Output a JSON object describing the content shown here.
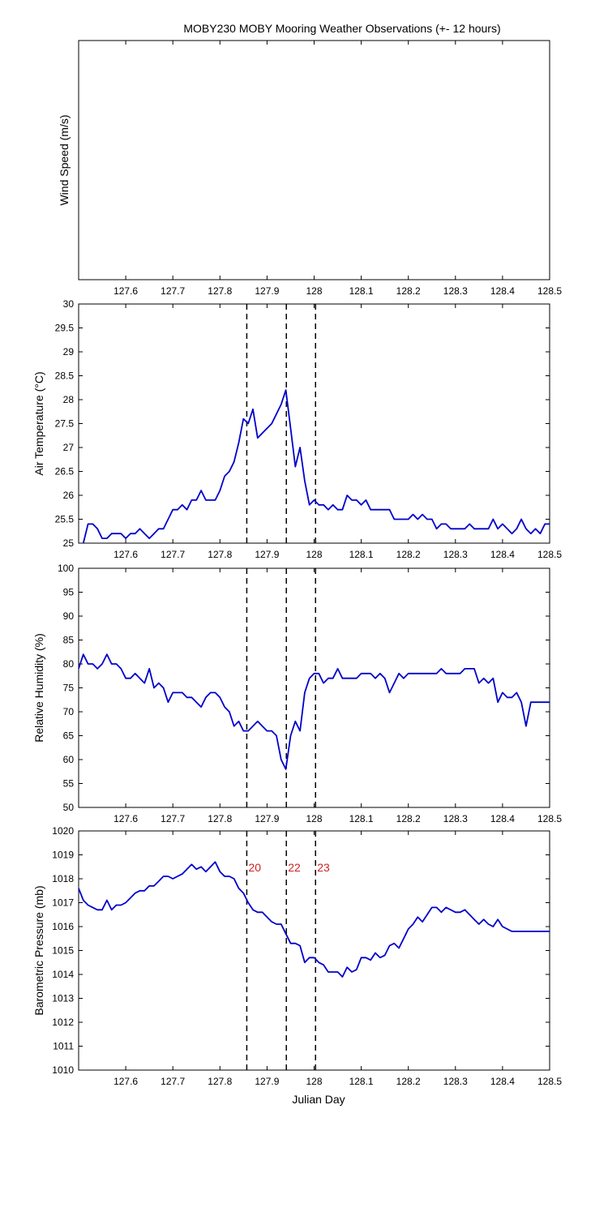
{
  "title": "MOBY230 MOBY Mooring Weather Observations (+- 12 hours)",
  "x_axis_label": "Julian Day",
  "colors": {
    "series": "#0000cc",
    "event_label": "#cc2222",
    "axes": "#000000",
    "event_line": "#000000"
  },
  "chart_data": [
    {
      "type": "line",
      "ylabel": "Wind Speed (m/s)",
      "xlim": [
        127.5,
        128.5
      ],
      "x_ticks": [
        "127.6",
        "127.7",
        "127.8",
        "127.9",
        "128",
        "128.1",
        "128.2",
        "128.3",
        "128.4",
        "128.5"
      ],
      "y_ticks": [],
      "series": [],
      "event_lines": []
    },
    {
      "type": "line",
      "ylabel": "Air Temperature (°C)",
      "xlim": [
        127.5,
        128.5
      ],
      "ylim": [
        25,
        30
      ],
      "x_ticks": [
        "127.6",
        "127.7",
        "127.8",
        "127.9",
        "128",
        "128.1",
        "128.2",
        "128.3",
        "128.4",
        "128.5"
      ],
      "y_ticks": [
        "25",
        "25.5",
        "26",
        "26.5",
        "27",
        "27.5",
        "28",
        "28.5",
        "29",
        "29.5",
        "30"
      ],
      "event_lines": [
        127.857,
        127.941,
        128.003
      ],
      "series": [
        {
          "x": [
            127.51,
            127.52,
            127.53,
            127.54,
            127.55,
            127.56,
            127.57,
            127.58,
            127.59,
            127.6,
            127.61,
            127.62,
            127.63,
            127.64,
            127.65,
            127.66,
            127.67,
            127.68,
            127.69,
            127.7,
            127.71,
            127.72,
            127.73,
            127.74,
            127.75,
            127.76,
            127.77,
            127.78,
            127.79,
            127.8,
            127.81,
            127.82,
            127.83,
            127.84,
            127.85,
            127.86,
            127.87,
            127.88,
            127.89,
            127.9,
            127.91,
            127.92,
            127.93,
            127.94,
            127.95,
            127.96,
            127.97,
            127.98,
            127.99,
            128.0,
            128.01,
            128.02,
            128.03,
            128.04,
            128.05,
            128.06,
            128.07,
            128.08,
            128.09,
            128.1,
            128.11,
            128.12,
            128.13,
            128.14,
            128.15,
            128.16,
            128.17,
            128.18,
            128.19,
            128.2,
            128.21,
            128.22,
            128.23,
            128.24,
            128.25,
            128.26,
            128.27,
            128.28,
            128.29,
            128.3,
            128.31,
            128.32,
            128.33,
            128.34,
            128.35,
            128.36,
            128.37,
            128.38,
            128.39,
            128.4,
            128.41,
            128.42,
            128.43,
            128.44,
            128.45,
            128.46,
            128.47,
            128.48,
            128.49,
            128.5
          ],
          "y": [
            25.0,
            25.4,
            25.4,
            25.3,
            25.1,
            25.1,
            25.2,
            25.2,
            25.2,
            25.1,
            25.2,
            25.2,
            25.3,
            25.2,
            25.1,
            25.2,
            25.3,
            25.3,
            25.5,
            25.7,
            25.7,
            25.8,
            25.7,
            25.9,
            25.9,
            26.1,
            25.9,
            25.9,
            25.9,
            26.1,
            26.4,
            26.5,
            26.7,
            27.1,
            27.6,
            27.5,
            27.8,
            27.2,
            27.3,
            27.4,
            27.5,
            27.7,
            27.9,
            28.2,
            27.4,
            26.6,
            27.0,
            26.3,
            25.8,
            25.9,
            25.8,
            25.8,
            25.7,
            25.8,
            25.7,
            25.7,
            26.0,
            25.9,
            25.9,
            25.8,
            25.9,
            25.7,
            25.7,
            25.7,
            25.7,
            25.7,
            25.5,
            25.5,
            25.5,
            25.5,
            25.6,
            25.5,
            25.6,
            25.5,
            25.5,
            25.3,
            25.4,
            25.4,
            25.3,
            25.3,
            25.3,
            25.3,
            25.4,
            25.3,
            25.3,
            25.3,
            25.3,
            25.5,
            25.3,
            25.4,
            25.3,
            25.2,
            25.3,
            25.5,
            25.3,
            25.2,
            25.3,
            25.2,
            25.4,
            25.4
          ]
        }
      ]
    },
    {
      "type": "line",
      "ylabel": "Relative Humidity (%)",
      "xlim": [
        127.5,
        128.5
      ],
      "ylim": [
        50,
        100
      ],
      "x_ticks": [
        "127.6",
        "127.7",
        "127.8",
        "127.9",
        "128",
        "128.1",
        "128.2",
        "128.3",
        "128.4",
        "128.5"
      ],
      "y_ticks": [
        "50",
        "55",
        "60",
        "65",
        "70",
        "75",
        "80",
        "85",
        "90",
        "95",
        "100"
      ],
      "event_lines": [
        127.857,
        127.941,
        128.003
      ],
      "series": [
        {
          "x": [
            127.5,
            127.51,
            127.52,
            127.53,
            127.54,
            127.55,
            127.56,
            127.57,
            127.58,
            127.59,
            127.6,
            127.61,
            127.62,
            127.63,
            127.64,
            127.65,
            127.66,
            127.67,
            127.68,
            127.69,
            127.7,
            127.71,
            127.72,
            127.73,
            127.74,
            127.75,
            127.76,
            127.77,
            127.78,
            127.79,
            127.8,
            127.81,
            127.82,
            127.83,
            127.84,
            127.85,
            127.86,
            127.87,
            127.88,
            127.89,
            127.9,
            127.91,
            127.92,
            127.93,
            127.94,
            127.95,
            127.96,
            127.97,
            127.98,
            127.99,
            128.0,
            128.01,
            128.02,
            128.03,
            128.04,
            128.05,
            128.06,
            128.07,
            128.08,
            128.09,
            128.1,
            128.11,
            128.12,
            128.13,
            128.14,
            128.15,
            128.16,
            128.17,
            128.18,
            128.19,
            128.2,
            128.21,
            128.22,
            128.23,
            128.24,
            128.25,
            128.26,
            128.27,
            128.28,
            128.29,
            128.3,
            128.31,
            128.32,
            128.33,
            128.34,
            128.35,
            128.36,
            128.37,
            128.38,
            128.39,
            128.4,
            128.41,
            128.42,
            128.43,
            128.44,
            128.45,
            128.46,
            128.47,
            128.48,
            128.49,
            128.5
          ],
          "y": [
            79,
            82,
            80,
            80,
            79,
            80,
            82,
            80,
            80,
            79,
            77,
            77,
            78,
            77,
            76,
            79,
            75,
            76,
            75,
            72,
            74,
            74,
            74,
            73,
            73,
            72,
            71,
            73,
            74,
            74,
            73,
            71,
            70,
            67,
            68,
            66,
            66,
            67,
            68,
            67,
            66,
            66,
            65,
            60,
            58,
            65,
            68,
            66,
            74,
            77,
            78,
            78,
            76,
            77,
            77,
            79,
            77,
            77,
            77,
            77,
            78,
            78,
            78,
            77,
            78,
            77,
            74,
            76,
            78,
            77,
            78,
            78,
            78,
            78,
            78,
            78,
            78,
            79,
            78,
            78,
            78,
            78,
            79,
            79,
            79,
            76,
            77,
            76,
            77,
            72,
            74,
            73,
            73,
            74,
            72,
            67,
            72,
            72,
            72,
            72,
            72
          ]
        }
      ]
    },
    {
      "type": "line",
      "ylabel": "Barometric Pressure (mb)",
      "xlabel": "Julian Day",
      "xlim": [
        127.5,
        128.5
      ],
      "ylim": [
        1010,
        1020
      ],
      "x_ticks": [
        "127.6",
        "127.7",
        "127.8",
        "127.9",
        "128",
        "128.1",
        "128.2",
        "128.3",
        "128.4",
        "128.5"
      ],
      "y_ticks": [
        "1010",
        "1011",
        "1012",
        "1013",
        "1014",
        "1015",
        "1016",
        "1017",
        "1018",
        "1019",
        "1020"
      ],
      "event_lines": [
        127.857,
        127.941,
        128.003
      ],
      "event_labels": [
        "20",
        "22",
        "23"
      ],
      "series": [
        {
          "x": [
            127.5,
            127.51,
            127.52,
            127.53,
            127.54,
            127.55,
            127.56,
            127.57,
            127.58,
            127.59,
            127.6,
            127.61,
            127.62,
            127.63,
            127.64,
            127.65,
            127.66,
            127.67,
            127.68,
            127.69,
            127.7,
            127.71,
            127.72,
            127.73,
            127.74,
            127.75,
            127.76,
            127.77,
            127.78,
            127.79,
            127.8,
            127.81,
            127.82,
            127.83,
            127.84,
            127.85,
            127.86,
            127.87,
            127.88,
            127.89,
            127.9,
            127.91,
            127.92,
            127.93,
            127.94,
            127.95,
            127.96,
            127.97,
            127.98,
            127.99,
            128.0,
            128.01,
            128.02,
            128.03,
            128.04,
            128.05,
            128.06,
            128.07,
            128.08,
            128.09,
            128.1,
            128.11,
            128.12,
            128.13,
            128.14,
            128.15,
            128.16,
            128.17,
            128.18,
            128.19,
            128.2,
            128.21,
            128.22,
            128.23,
            128.24,
            128.25,
            128.26,
            128.27,
            128.28,
            128.29,
            128.3,
            128.31,
            128.32,
            128.33,
            128.34,
            128.35,
            128.36,
            128.37,
            128.38,
            128.39,
            128.4,
            128.41,
            128.42,
            128.43,
            128.44,
            128.45,
            128.46,
            128.47,
            128.48,
            128.49,
            128.5
          ],
          "y": [
            1017.6,
            1017.1,
            1016.9,
            1016.8,
            1016.7,
            1016.7,
            1017.1,
            1016.7,
            1016.9,
            1016.9,
            1017.0,
            1017.2,
            1017.4,
            1017.5,
            1017.5,
            1017.7,
            1017.7,
            1017.9,
            1018.1,
            1018.1,
            1018.0,
            1018.1,
            1018.2,
            1018.4,
            1018.6,
            1018.4,
            1018.5,
            1018.3,
            1018.5,
            1018.7,
            1018.3,
            1018.1,
            1018.1,
            1018.0,
            1017.6,
            1017.4,
            1017.0,
            1016.7,
            1016.6,
            1016.6,
            1016.4,
            1016.2,
            1016.1,
            1016.1,
            1015.7,
            1015.3,
            1015.3,
            1015.2,
            1014.5,
            1014.7,
            1014.7,
            1014.5,
            1014.4,
            1014.1,
            1014.1,
            1014.1,
            1013.9,
            1014.3,
            1014.1,
            1014.2,
            1014.7,
            1014.7,
            1014.6,
            1014.9,
            1014.7,
            1014.8,
            1015.2,
            1015.3,
            1015.1,
            1015.5,
            1015.9,
            1016.1,
            1016.4,
            1016.2,
            1016.5,
            1016.8,
            1016.8,
            1016.6,
            1016.8,
            1016.7,
            1016.6,
            1016.6,
            1016.7,
            1016.5,
            1016.3,
            1016.1,
            1016.3,
            1016.1,
            1016.0,
            1016.3,
            1016.0,
            1015.9,
            1015.8,
            1015.8,
            1015.8,
            1015.8,
            1015.8,
            1015.8,
            1015.8,
            1015.8,
            1015.8
          ]
        }
      ]
    }
  ]
}
